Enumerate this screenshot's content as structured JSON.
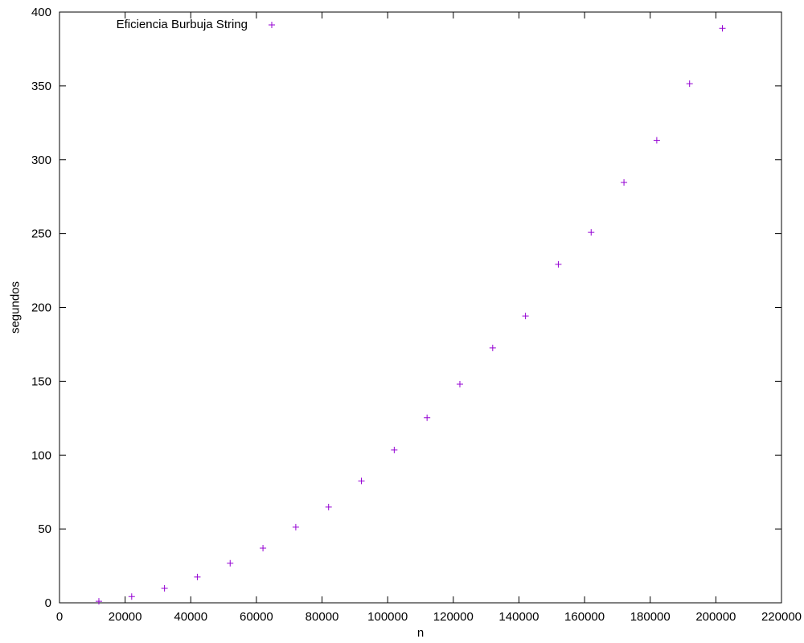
{
  "chart_data": {
    "type": "scatter",
    "xlabel": "n",
    "ylabel": "segundos",
    "xlim": [
      0,
      220000
    ],
    "ylim": [
      0,
      400
    ],
    "xticks": [
      0,
      20000,
      40000,
      60000,
      80000,
      100000,
      120000,
      140000,
      160000,
      180000,
      200000,
      220000
    ],
    "yticks": [
      0,
      50,
      100,
      150,
      200,
      250,
      300,
      350,
      400
    ],
    "grid": false,
    "legend_position": "top-left",
    "marker": "plus",
    "series": [
      {
        "name": "Eficiencia Burbuja String",
        "color": "#9400d3",
        "x": [
          12000,
          22000,
          32000,
          42000,
          52000,
          62000,
          72000,
          82000,
          92000,
          102000,
          112000,
          122000,
          132000,
          142000,
          152000,
          162000,
          172000,
          182000,
          192000,
          202000
        ],
        "y": [
          1,
          4.2,
          9.8,
          17.5,
          26.8,
          37,
          51.2,
          64.8,
          82.5,
          103.5,
          125.3,
          148,
          172.6,
          194.2,
          229.2,
          250.8,
          284.6,
          313.2,
          351.5,
          389
        ]
      }
    ]
  }
}
